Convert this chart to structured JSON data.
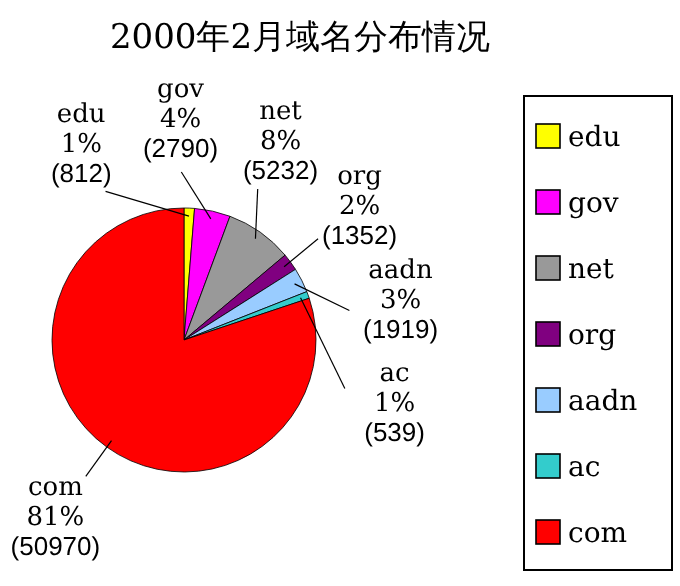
{
  "chart_data": {
    "type": "pie",
    "title": "2000年2月域名分布情况",
    "categories": [
      "edu",
      "gov",
      "net",
      "org",
      "aadn",
      "ac",
      "com"
    ],
    "values": [
      812,
      2790,
      5232,
      1352,
      1919,
      539,
      50970
    ],
    "colors": [
      "#ffff00",
      "#ff00ff",
      "#999999",
      "#800080",
      "#99ccff",
      "#33cccc",
      "#ff0000"
    ],
    "value_labels": [
      "1% (812)",
      "4% (2790)",
      "8% (5232)",
      "2% (1352)",
      "3% (1919)",
      "1% (539)",
      "81% (50970)"
    ],
    "legend": "right"
  }
}
